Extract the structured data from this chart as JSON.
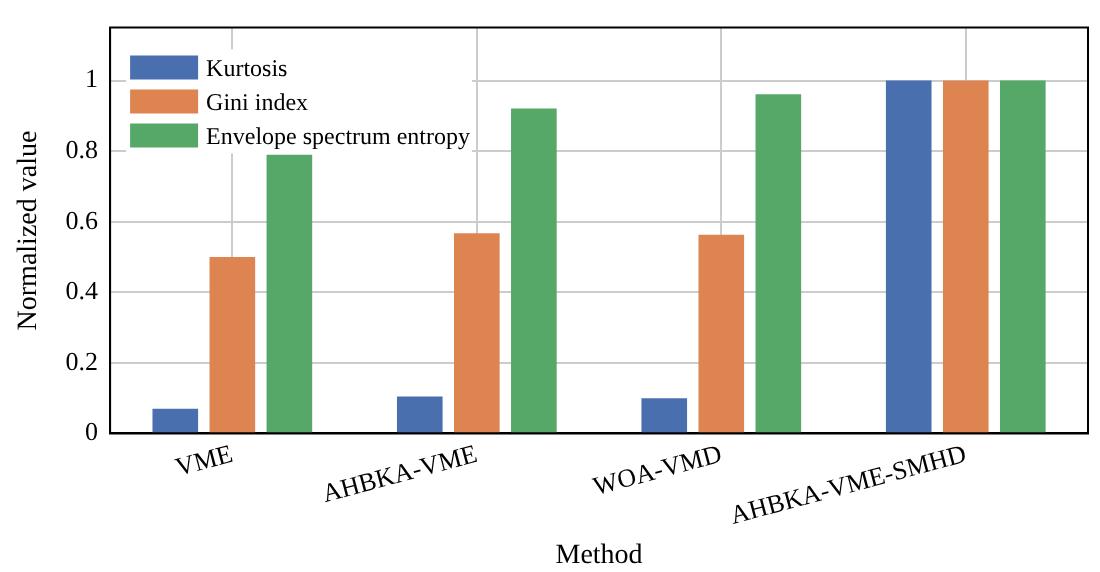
{
  "chart_data": {
    "type": "bar",
    "xlabel": "Method",
    "ylabel": "Normalized value",
    "categories": [
      "VME",
      "AHBKA-VME",
      "WOA-VMD",
      "AHBKA-VME-SMHD"
    ],
    "series": [
      {
        "name": "Kurtosis",
        "color": "#4a6fae",
        "values": [
          0.07,
          0.105,
          0.1,
          1
        ]
      },
      {
        "name": "Gini index",
        "color": "#de8451",
        "values": [
          0.5,
          0.567,
          0.563,
          1
        ]
      },
      {
        "name": "Envelope spectrum entropy",
        "color": "#56a868",
        "values": [
          0.79,
          0.921,
          0.961,
          1
        ]
      }
    ],
    "ylim": [
      0,
      1.15
    ],
    "yticks": [
      0,
      0.2,
      0.4,
      0.6,
      0.8,
      1
    ],
    "grid": true,
    "legend": "top left"
  }
}
